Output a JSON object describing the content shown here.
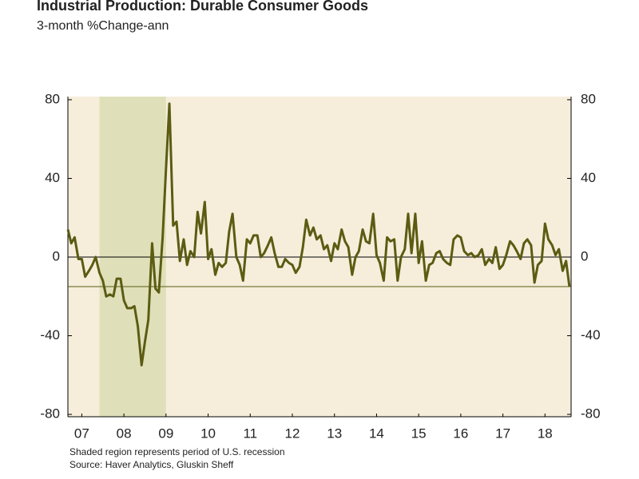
{
  "chart_data": {
    "type": "line",
    "title": "Industrial Production: Durable Consumer Goods",
    "subtitle": "3-month %Change-ann",
    "footnotes": [
      "Shaded region represents period of U.S. recession",
      "Source: Haver Analytics, Gluskin Sheff"
    ],
    "x": [
      2007.17,
      2007.25,
      2007.33,
      2007.42,
      2007.5,
      2007.58,
      2007.67,
      2007.75,
      2007.83,
      2007.92,
      2008.0,
      2008.08,
      2008.17,
      2008.25,
      2008.33,
      2008.42,
      2008.5,
      2008.58,
      2008.67,
      2008.75,
      2008.83,
      2008.92,
      2009.0,
      2009.08,
      2009.17,
      2009.25,
      2009.33,
      2009.42,
      2009.5,
      2009.58,
      2009.67,
      2009.75,
      2009.83,
      2009.92,
      2010.0,
      2010.08,
      2010.17,
      2010.25,
      2010.33,
      2010.42,
      2010.5,
      2010.58,
      2010.67,
      2010.75,
      2010.83,
      2010.92,
      2011.0,
      2011.08,
      2011.17,
      2011.25,
      2011.33,
      2011.42,
      2011.5,
      2011.58,
      2011.67,
      2011.75,
      2011.83,
      2011.92,
      2012.0,
      2012.08,
      2012.17,
      2012.25,
      2012.33,
      2012.42,
      2012.5,
      2012.58,
      2012.67,
      2012.75,
      2012.83,
      2012.92,
      2013.0,
      2013.08,
      2013.17,
      2013.25,
      2013.33,
      2013.42,
      2013.5,
      2013.58,
      2013.67,
      2013.75,
      2013.83,
      2013.92,
      2014.0,
      2014.08,
      2014.17,
      2014.25,
      2014.33,
      2014.42,
      2014.5,
      2014.58,
      2014.67,
      2014.75,
      2014.83,
      2014.92,
      2015.0,
      2015.08,
      2015.17,
      2015.25,
      2015.33,
      2015.42,
      2015.5,
      2015.58,
      2015.67,
      2015.75,
      2015.83,
      2015.92,
      2016.0,
      2016.08,
      2016.17,
      2016.25,
      2016.33,
      2016.42,
      2016.5,
      2016.58,
      2016.67,
      2016.75,
      2016.83,
      2016.92,
      2017.0,
      2017.08,
      2017.17,
      2017.25,
      2017.33,
      2017.42,
      2017.5,
      2017.58,
      2017.67,
      2017.75,
      2017.83,
      2017.92,
      2018.0,
      2018.08,
      2018.17,
      2018.25,
      2018.33,
      2018.42,
      2018.5,
      2018.58,
      2018.67,
      2018.75,
      2018.83,
      2018.92,
      2019.0,
      2019.08
    ],
    "series": [
      {
        "color": "#5b5c12",
        "values": [
          14,
          7,
          10,
          -1,
          -1,
          -10,
          -7,
          -4,
          0,
          -8,
          -12,
          -20,
          -19,
          -20,
          -11,
          -11,
          -22,
          -26,
          -26,
          -25,
          -35,
          -55,
          -43,
          -32,
          7,
          -16,
          -18,
          10,
          45,
          78,
          16,
          18,
          -2,
          9,
          -4,
          3,
          0,
          23,
          12,
          28,
          -1,
          4,
          -9,
          -3,
          -5,
          -3,
          13,
          22,
          0,
          -4,
          -12,
          9,
          7,
          11,
          11,
          0,
          2,
          6,
          10,
          2,
          -5,
          -5,
          -1,
          -3,
          -4,
          -8,
          -5,
          5,
          19,
          11,
          15,
          9,
          11,
          4,
          6,
          -2,
          7,
          4,
          14,
          8,
          5,
          -9,
          0,
          3,
          14,
          8,
          7,
          22,
          1,
          -3,
          -12,
          10,
          8,
          9,
          -12,
          0,
          4,
          22,
          2,
          22,
          -3,
          8,
          -12,
          -4,
          -3,
          2,
          3,
          -1,
          -3,
          -4,
          9,
          11,
          10,
          3,
          1,
          2,
          0,
          1,
          4,
          -4,
          -1,
          -3,
          5,
          -6,
          -4,
          1,
          8,
          6,
          3,
          -1,
          7,
          9,
          6,
          -13,
          -4,
          -2,
          17,
          9,
          6,
          1,
          4,
          -7,
          -2,
          -15
        ]
      }
    ],
    "recession": [
      2007.92,
      2009.5
    ],
    "xlim": [
      2007.17,
      2019.12
    ],
    "xticks": [
      {
        "value": 2007.5,
        "label": "07"
      },
      {
        "value": 2008.5,
        "label": "08"
      },
      {
        "value": 2009.5,
        "label": "09"
      },
      {
        "value": 2010.5,
        "label": "10"
      },
      {
        "value": 2011.5,
        "label": "11"
      },
      {
        "value": 2012.5,
        "label": "12"
      },
      {
        "value": 2013.5,
        "label": "13"
      },
      {
        "value": 2014.5,
        "label": "14"
      },
      {
        "value": 2015.5,
        "label": "15"
      },
      {
        "value": 2016.5,
        "label": "16"
      },
      {
        "value": 2017.5,
        "label": "17"
      },
      {
        "value": 2018.5,
        "label": "18"
      }
    ],
    "ylim": [
      -81.2,
      81.6
    ],
    "yticks": [
      80,
      40,
      0,
      -40,
      -80
    ],
    "y2ticks": [
      80,
      40,
      0,
      -40,
      -80
    ]
  }
}
